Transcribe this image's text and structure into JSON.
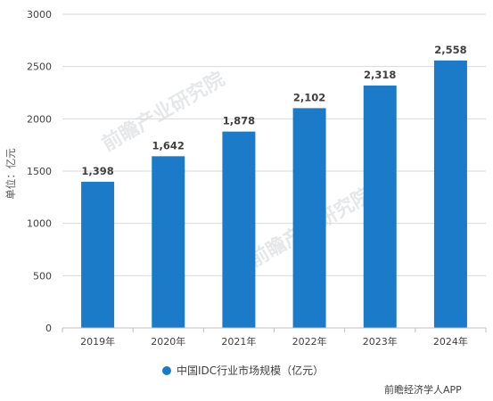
{
  "chart_data": {
    "type": "bar",
    "title": "",
    "xlabel": "",
    "ylabel": "单位：亿元",
    "categories": [
      "2019年",
      "2020年",
      "2021年",
      "2022年",
      "2023年",
      "2024年"
    ],
    "series": [
      {
        "name": "中国IDC行业市场规模（亿元）",
        "values": [
          1398,
          1642,
          1878,
          2102,
          2318,
          2558
        ],
        "labels": [
          "1,398",
          "1,642",
          "1,878",
          "2,102",
          "2,318",
          "2,558"
        ]
      }
    ],
    "ylim": [
      0,
      3000
    ],
    "yticks": [
      0,
      500,
      1000,
      1500,
      2000,
      2500,
      3000
    ],
    "grid": true,
    "legend_position": "bottom",
    "bar_color": "#1b7bc8",
    "grid_color": "#d9d9d9"
  },
  "credit": "前瞻经济学人APP",
  "watermark": "前瞻产业研究院"
}
